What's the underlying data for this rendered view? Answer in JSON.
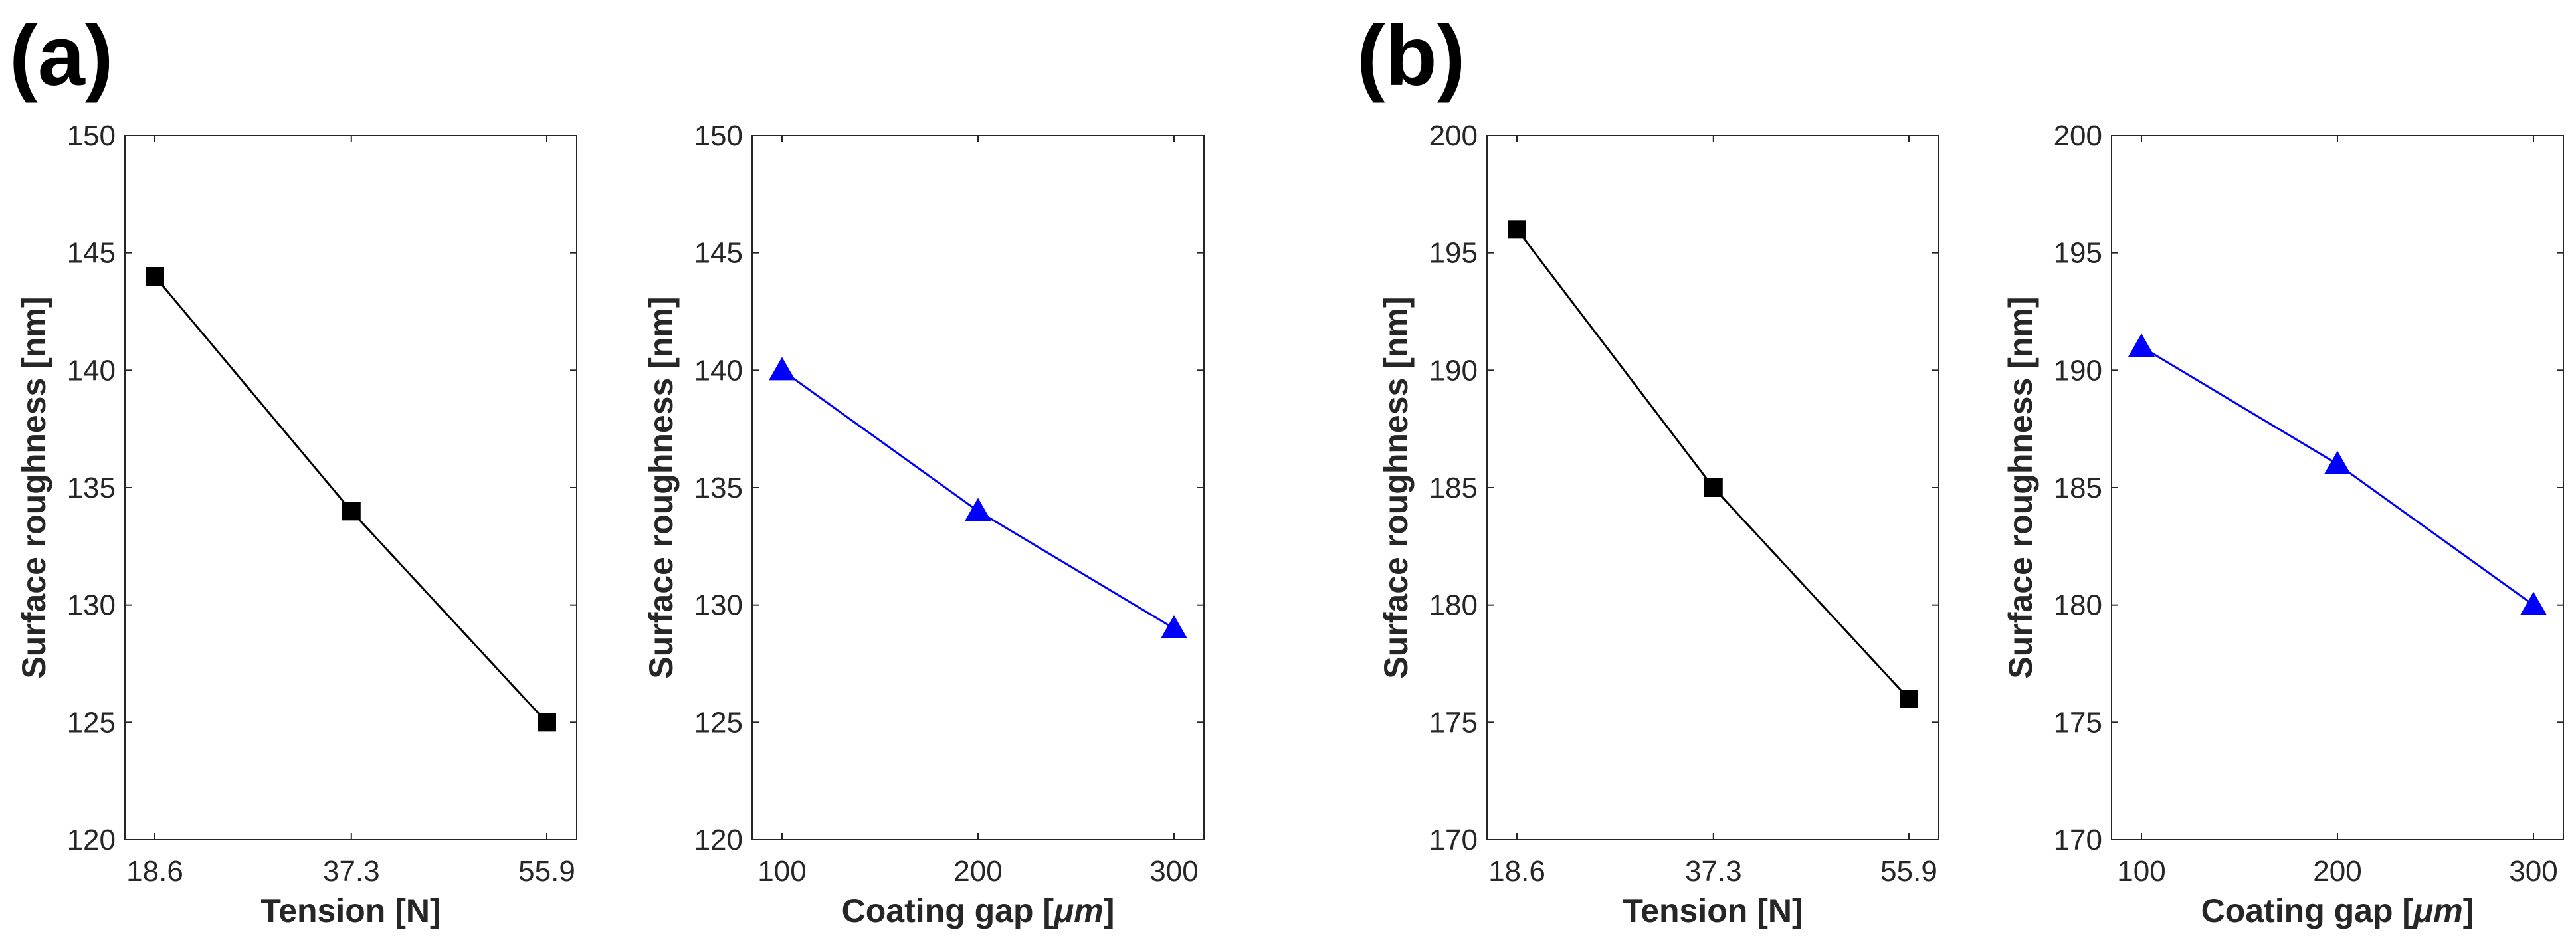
{
  "panels": [
    {
      "label": "(a)"
    },
    {
      "label": "(b)"
    }
  ],
  "chart_data": [
    {
      "type": "line",
      "panel": "(a)",
      "title": "",
      "xlabel": "Tension [N]",
      "ylabel": "Surface roughness [nm]",
      "x": [
        18.6,
        37.3,
        55.9
      ],
      "xticks": [
        "18.6",
        "37.3",
        "55.9"
      ],
      "values": [
        144,
        134,
        125
      ],
      "ylim": [
        120,
        150
      ],
      "yticks": [
        120,
        125,
        130,
        135,
        140,
        145,
        150
      ],
      "marker": "square",
      "color": "#000000",
      "grid": false
    },
    {
      "type": "line",
      "panel": "(a)",
      "title": "",
      "xlabel_prefix": "Coating gap [",
      "xlabel_unit": "μm",
      "xlabel_suffix": "]",
      "ylabel": "Surface roughness [nm]",
      "x": [
        100,
        200,
        300
      ],
      "xticks": [
        "100",
        "200",
        "300"
      ],
      "values": [
        140,
        134,
        129
      ],
      "ylim": [
        120,
        150
      ],
      "yticks": [
        120,
        125,
        130,
        135,
        140,
        145,
        150
      ],
      "marker": "triangle",
      "color": "#0000ff",
      "grid": false
    },
    {
      "type": "line",
      "panel": "(b)",
      "title": "",
      "xlabel": "Tension [N]",
      "ylabel": "Surface roughness [nm]",
      "x": [
        18.6,
        37.3,
        55.9
      ],
      "xticks": [
        "18.6",
        "37.3",
        "55.9"
      ],
      "values": [
        196,
        185,
        176
      ],
      "ylim": [
        170,
        200
      ],
      "yticks": [
        170,
        175,
        180,
        185,
        190,
        195,
        200
      ],
      "marker": "square",
      "color": "#000000",
      "grid": false
    },
    {
      "type": "line",
      "panel": "(b)",
      "title": "",
      "xlabel_prefix": "Coating gap [",
      "xlabel_unit": "μm",
      "xlabel_suffix": "]",
      "ylabel": "Surface roughness [nm]",
      "x": [
        100,
        200,
        300
      ],
      "xticks": [
        "100",
        "200",
        "300"
      ],
      "values": [
        191,
        186,
        180
      ],
      "ylim": [
        170,
        200
      ],
      "yticks": [
        170,
        175,
        180,
        185,
        190,
        195,
        200
      ],
      "marker": "triangle",
      "color": "#0000ff",
      "grid": false
    }
  ]
}
